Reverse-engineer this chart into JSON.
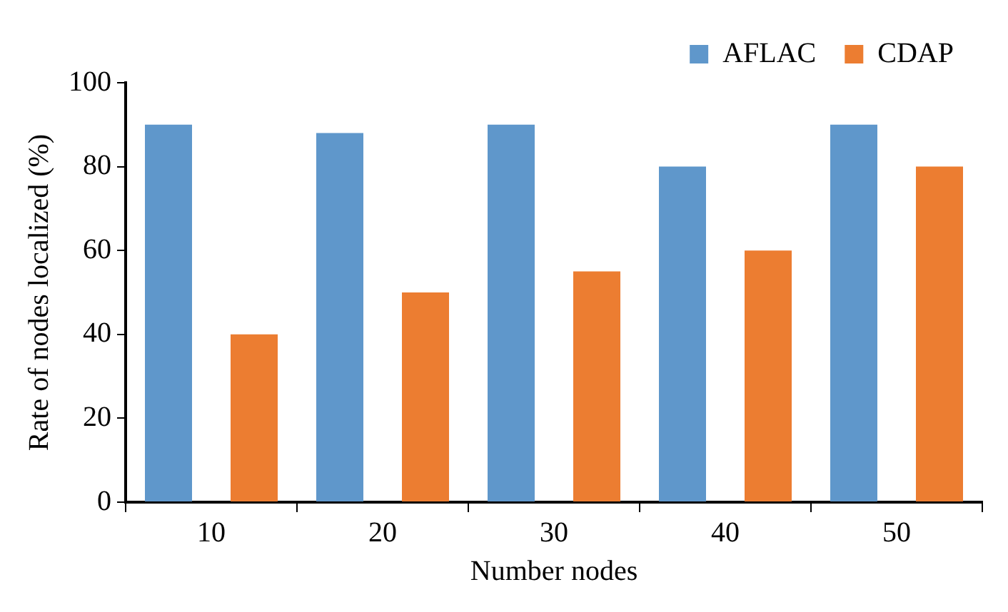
{
  "chart_data": {
    "type": "bar",
    "xlabel": "Number nodes",
    "ylabel": "Rate of nodes localized (%)",
    "categories": [
      "10",
      "20",
      "30",
      "40",
      "50"
    ],
    "series": [
      {
        "name": "AFLAC",
        "color": "#5f97cb",
        "values": [
          90,
          88,
          90,
          80,
          90
        ]
      },
      {
        "name": "CDAP",
        "color": "#ec7d31",
        "values": [
          40,
          50,
          55,
          60,
          80
        ]
      }
    ],
    "ylim": [
      0,
      100
    ],
    "yticks": [
      0,
      20,
      40,
      60,
      80,
      100
    ],
    "grid": false,
    "legend": "top right"
  }
}
